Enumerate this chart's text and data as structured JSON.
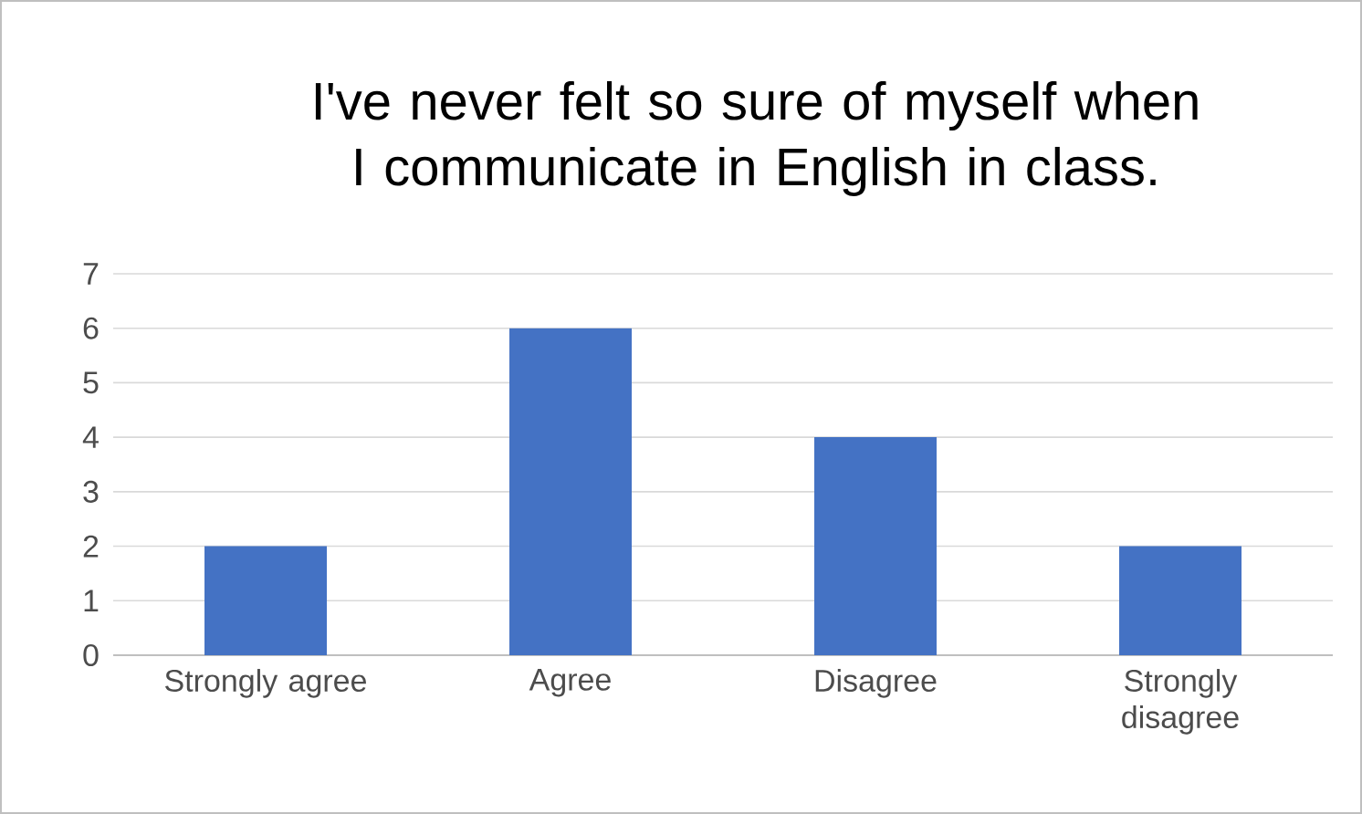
{
  "chart_data": {
    "type": "bar",
    "title": "I've never felt so sure of myself when I communicate in English in class.",
    "categories": [
      "Strongly agree",
      "Agree",
      "Disagree",
      "Strongly disagree"
    ],
    "values": [
      2,
      6,
      4,
      2
    ],
    "color": "#4472c4",
    "ylim": [
      0,
      7
    ],
    "yticks": [
      0,
      1,
      2,
      3,
      4,
      5,
      6,
      7
    ],
    "grid": "y"
  }
}
